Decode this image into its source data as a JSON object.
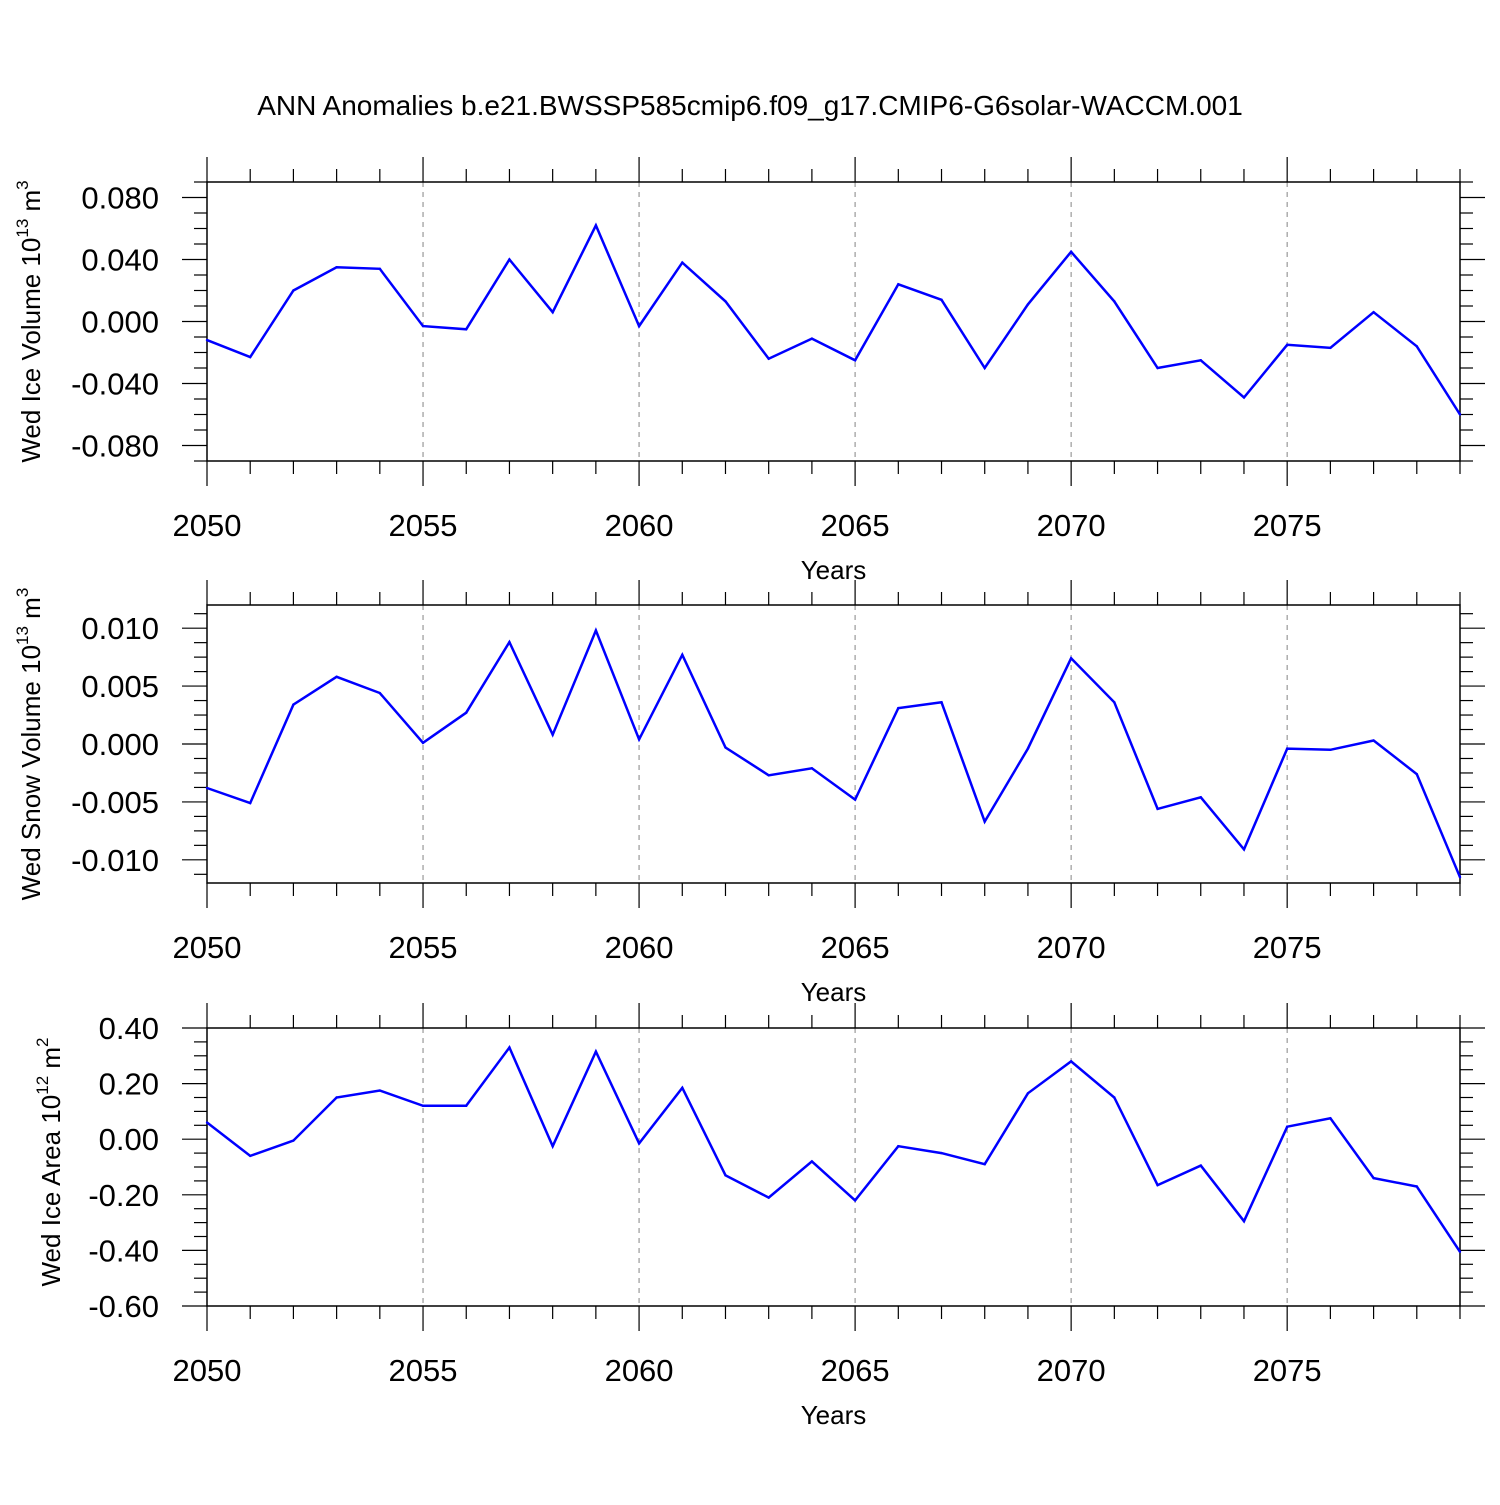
{
  "title": "ANN Anomalies b.e21.BWSSP585cmip6.f09_g17.CMIP6-G6solar-WACCM.001",
  "colors": {
    "line": "#0000ff",
    "axis": "#000000",
    "refline": "#999999"
  },
  "chart_data": [
    {
      "type": "line",
      "ylabel": {
        "main": "Wed Ice Volume 10",
        "sup": "13",
        "unit": " m",
        "unit_sup": "3"
      },
      "xlabel": "Years",
      "xlim": [
        2050,
        2079
      ],
      "ylim": [
        -0.09,
        0.09
      ],
      "yticks": [
        0.08,
        0.04,
        0.0,
        -0.04,
        -0.08
      ],
      "ytick_labels": [
        "0.080",
        "0.040",
        "0.000",
        "-0.040",
        "-0.080"
      ],
      "xticks": [
        2050,
        2055,
        2060,
        2065,
        2070,
        2075
      ],
      "xtick_labels": [
        "2050",
        "2055",
        "2060",
        "2065",
        "2070",
        "2075"
      ],
      "x": [
        2050,
        2051,
        2052,
        2053,
        2054,
        2055,
        2056,
        2057,
        2058,
        2059,
        2060,
        2061,
        2062,
        2063,
        2064,
        2065,
        2066,
        2067,
        2068,
        2069,
        2070,
        2071,
        2072,
        2073,
        2074,
        2075,
        2076,
        2077,
        2078,
        2079
      ],
      "values": [
        -0.012,
        -0.023,
        0.02,
        0.035,
        0.034,
        -0.003,
        -0.005,
        0.04,
        0.006,
        0.062,
        -0.003,
        0.038,
        0.013,
        -0.024,
        -0.011,
        -0.025,
        0.024,
        0.014,
        -0.03,
        0.011,
        0.045,
        0.013,
        -0.03,
        -0.025,
        -0.049,
        -0.015,
        -0.017,
        0.006,
        -0.016,
        -0.06
      ]
    },
    {
      "type": "line",
      "ylabel": {
        "main": "Wed Snow Volume 10",
        "sup": "13",
        "unit": " m",
        "unit_sup": "3"
      },
      "xlabel": "Years",
      "xlim": [
        2050,
        2079
      ],
      "ylim": [
        -0.012,
        0.012
      ],
      "yticks": [
        0.01,
        0.005,
        0.0,
        -0.005,
        -0.01
      ],
      "ytick_labels": [
        "0.010",
        "0.005",
        "0.000",
        "-0.005",
        "-0.010"
      ],
      "xticks": [
        2050,
        2055,
        2060,
        2065,
        2070,
        2075
      ],
      "xtick_labels": [
        "2050",
        "2055",
        "2060",
        "2065",
        "2070",
        "2075"
      ],
      "x": [
        2050,
        2051,
        2052,
        2053,
        2054,
        2055,
        2056,
        2057,
        2058,
        2059,
        2060,
        2061,
        2062,
        2063,
        2064,
        2065,
        2066,
        2067,
        2068,
        2069,
        2070,
        2071,
        2072,
        2073,
        2074,
        2075,
        2076,
        2077,
        2078,
        2079
      ],
      "values": [
        -0.0038,
        -0.0051,
        0.0034,
        0.0058,
        0.0044,
        0.0001,
        0.0027,
        0.0088,
        0.0008,
        0.0098,
        0.0004,
        0.0077,
        -0.0003,
        -0.0027,
        -0.0021,
        -0.0048,
        0.0031,
        0.0036,
        -0.0067,
        -0.0004,
        0.0074,
        0.0036,
        -0.0056,
        -0.0046,
        -0.0091,
        -0.0004,
        -0.0005,
        0.0003,
        -0.0026,
        -0.0115
      ]
    },
    {
      "type": "line",
      "ylabel": {
        "main": "Wed Ice Area 10",
        "sup": "12",
        "unit": " m",
        "unit_sup": "2"
      },
      "xlabel": "Years",
      "xlim": [
        2050,
        2079
      ],
      "ylim": [
        -0.6,
        0.4
      ],
      "yticks": [
        0.4,
        0.2,
        0.0,
        -0.2,
        -0.4,
        -0.6
      ],
      "ytick_labels": [
        "0.40",
        "0.20",
        "0.00",
        "-0.20",
        "-0.40",
        "-0.60"
      ],
      "xticks": [
        2050,
        2055,
        2060,
        2065,
        2070,
        2075
      ],
      "xtick_labels": [
        "2050",
        "2055",
        "2060",
        "2065",
        "2070",
        "2075"
      ],
      "x": [
        2050,
        2051,
        2052,
        2053,
        2054,
        2055,
        2056,
        2057,
        2058,
        2059,
        2060,
        2061,
        2062,
        2063,
        2064,
        2065,
        2066,
        2067,
        2068,
        2069,
        2070,
        2071,
        2072,
        2073,
        2074,
        2075,
        2076,
        2077,
        2078,
        2079
      ],
      "values": [
        0.06,
        -0.06,
        -0.005,
        0.15,
        0.175,
        0.12,
        0.12,
        0.33,
        -0.025,
        0.315,
        -0.015,
        0.185,
        -0.13,
        -0.21,
        -0.08,
        -0.22,
        -0.025,
        -0.05,
        -0.09,
        0.165,
        0.28,
        0.15,
        -0.165,
        -0.095,
        -0.295,
        0.045,
        0.075,
        -0.14,
        -0.17,
        -0.405
      ]
    }
  ]
}
